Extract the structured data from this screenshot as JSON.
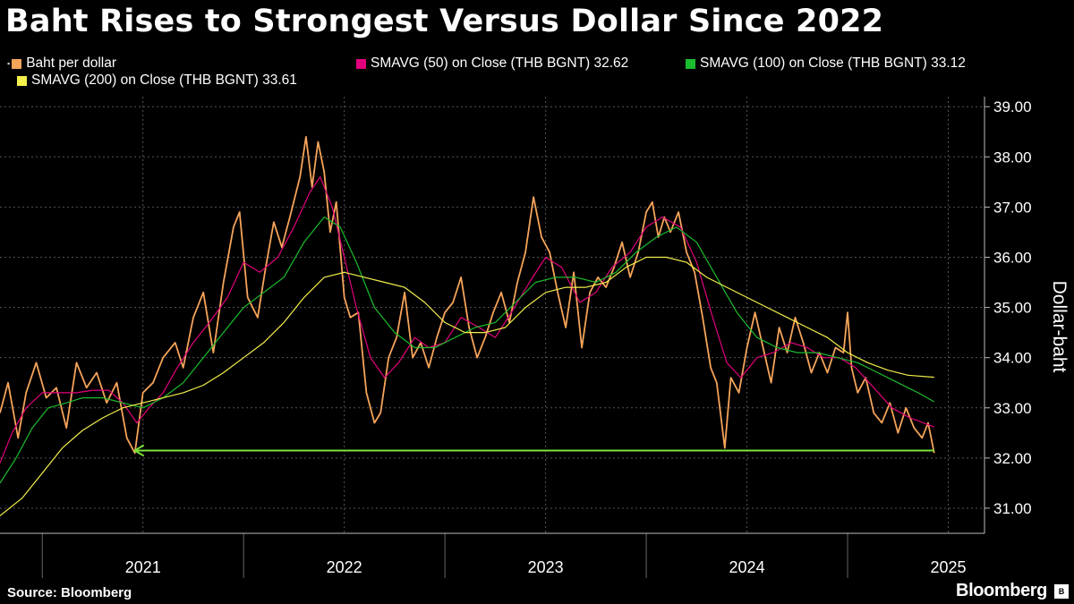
{
  "title": "Baht Rises to Strongest Versus Dollar Since 2022",
  "source": "Source: Bloomberg",
  "brand": "Bloomberg",
  "legend": [
    {
      "label": "Baht per dollar",
      "color": "#f6a45a",
      "marker": true
    },
    {
      "label": "SMAVG (50)  on Close (THB BGNT) 32.62",
      "color": "#e3007d"
    },
    {
      "label": "SMAVG (100)  on Close (THB BGNT) 33.12",
      "color": "#1bbc2e"
    },
    {
      "label": "SMAVG (200)  on Close (THB BGNT) 33.61",
      "color": "#f3ef4b"
    }
  ],
  "chart_data": {
    "type": "line",
    "ylabel": "Dollar-baht",
    "ylim": [
      30.5,
      39.2
    ],
    "yticks": [
      "31.00",
      "32.00",
      "33.00",
      "34.00",
      "35.00",
      "36.00",
      "37.00",
      "38.00",
      "39.00"
    ],
    "xlim": [
      2020.79,
      2025.68
    ],
    "year_labels": [
      {
        "label": "2021",
        "x": 2021.0
      },
      {
        "label": "2022",
        "x": 2022.0
      },
      {
        "label": "2023",
        "x": 2023.0
      },
      {
        "label": "2024",
        "x": 2024.0
      },
      {
        "label": "2025",
        "x": 2025.0
      }
    ],
    "series": [
      {
        "name": "Baht per dollar",
        "color": "#f6a45a",
        "values": [
          [
            2020.79,
            32.9
          ],
          [
            2020.83,
            33.5
          ],
          [
            2020.88,
            32.4
          ],
          [
            2020.92,
            33.3
          ],
          [
            2020.97,
            33.9
          ],
          [
            2021.02,
            33.2
          ],
          [
            2021.07,
            33.4
          ],
          [
            2021.12,
            32.6
          ],
          [
            2021.17,
            33.9
          ],
          [
            2021.22,
            33.4
          ],
          [
            2021.27,
            33.7
          ],
          [
            2021.32,
            33.1
          ],
          [
            2021.37,
            33.5
          ],
          [
            2021.42,
            32.4
          ],
          [
            2021.46,
            32.1
          ],
          [
            2021.5,
            33.3
          ],
          [
            2021.55,
            33.5
          ],
          [
            2021.6,
            34.0
          ],
          [
            2021.66,
            34.3
          ],
          [
            2021.7,
            33.8
          ],
          [
            2021.75,
            34.8
          ],
          [
            2021.8,
            35.3
          ],
          [
            2021.85,
            34.1
          ],
          [
            2021.9,
            35.5
          ],
          [
            2021.95,
            36.6
          ],
          [
            2021.98,
            36.9
          ],
          [
            2022.02,
            35.2
          ],
          [
            2022.07,
            34.8
          ],
          [
            2022.11,
            35.8
          ],
          [
            2022.15,
            36.7
          ],
          [
            2022.19,
            36.2
          ],
          [
            2022.23,
            36.8
          ],
          [
            2022.28,
            37.6
          ],
          [
            2022.31,
            38.4
          ],
          [
            2022.34,
            37.4
          ],
          [
            2022.37,
            38.3
          ],
          [
            2022.4,
            37.7
          ],
          [
            2022.43,
            36.5
          ],
          [
            2022.46,
            37.1
          ],
          [
            2022.5,
            35.2
          ],
          [
            2022.53,
            34.8
          ],
          [
            2022.57,
            34.9
          ],
          [
            2022.61,
            33.3
          ],
          [
            2022.65,
            32.7
          ],
          [
            2022.68,
            32.9
          ],
          [
            2022.72,
            34.0
          ],
          [
            2022.76,
            34.4
          ],
          [
            2022.8,
            35.3
          ],
          [
            2022.84,
            34.0
          ],
          [
            2022.88,
            34.3
          ],
          [
            2022.92,
            33.8
          ],
          [
            2022.96,
            34.4
          ],
          [
            2023.0,
            34.9
          ],
          [
            2023.04,
            35.1
          ],
          [
            2023.08,
            35.6
          ],
          [
            2023.12,
            34.6
          ],
          [
            2023.16,
            34.0
          ],
          [
            2023.2,
            34.4
          ],
          [
            2023.24,
            34.9
          ],
          [
            2023.28,
            35.3
          ],
          [
            2023.32,
            34.7
          ],
          [
            2023.36,
            35.5
          ],
          [
            2023.4,
            36.1
          ],
          [
            2023.44,
            37.2
          ],
          [
            2023.48,
            36.4
          ],
          [
            2023.52,
            36.1
          ],
          [
            2023.56,
            35.3
          ],
          [
            2023.6,
            34.6
          ],
          [
            2023.64,
            35.7
          ],
          [
            2023.68,
            34.2
          ],
          [
            2023.72,
            35.3
          ],
          [
            2023.76,
            35.6
          ],
          [
            2023.8,
            35.4
          ],
          [
            2023.84,
            35.8
          ],
          [
            2023.88,
            36.3
          ],
          [
            2023.92,
            35.6
          ],
          [
            2023.96,
            36.1
          ],
          [
            2024.0,
            36.9
          ],
          [
            2024.03,
            37.1
          ],
          [
            2024.06,
            36.4
          ],
          [
            2024.09,
            36.8
          ],
          [
            2024.12,
            36.5
          ],
          [
            2024.16,
            36.9
          ],
          [
            2024.2,
            36.1
          ],
          [
            2024.24,
            35.7
          ],
          [
            2024.28,
            34.8
          ],
          [
            2024.32,
            33.8
          ],
          [
            2024.35,
            33.5
          ],
          [
            2024.39,
            32.2
          ],
          [
            2024.42,
            33.6
          ],
          [
            2024.46,
            33.3
          ],
          [
            2024.5,
            34.2
          ],
          [
            2024.54,
            34.9
          ],
          [
            2024.58,
            34.2
          ],
          [
            2024.62,
            33.5
          ],
          [
            2024.66,
            34.6
          ],
          [
            2024.7,
            34.1
          ],
          [
            2024.74,
            34.8
          ],
          [
            2024.78,
            34.3
          ],
          [
            2024.82,
            33.7
          ],
          [
            2024.86,
            34.1
          ],
          [
            2024.9,
            33.7
          ],
          [
            2024.94,
            34.2
          ],
          [
            2024.98,
            34.1
          ],
          [
            2025.0,
            34.9
          ],
          [
            2025.02,
            33.8
          ],
          [
            2025.05,
            33.3
          ],
          [
            2025.09,
            33.6
          ],
          [
            2025.13,
            32.9
          ],
          [
            2025.17,
            32.7
          ],
          [
            2025.21,
            33.1
          ],
          [
            2025.25,
            32.5
          ],
          [
            2025.29,
            33.0
          ],
          [
            2025.33,
            32.6
          ],
          [
            2025.37,
            32.4
          ],
          [
            2025.4,
            32.7
          ],
          [
            2025.43,
            32.1
          ]
        ]
      },
      {
        "name": "SMAVG (50)  on Close (THB BGNT) 32.62",
        "color": "#e3007d",
        "values": [
          [
            2020.79,
            31.9
          ],
          [
            2020.85,
            32.5
          ],
          [
            2020.92,
            33.0
          ],
          [
            2021.0,
            33.3
          ],
          [
            2021.08,
            33.3
          ],
          [
            2021.17,
            33.3
          ],
          [
            2021.25,
            33.35
          ],
          [
            2021.33,
            33.35
          ],
          [
            2021.4,
            33.1
          ],
          [
            2021.47,
            32.7
          ],
          [
            2021.53,
            33.0
          ],
          [
            2021.6,
            33.3
          ],
          [
            2021.67,
            33.8
          ],
          [
            2021.75,
            34.3
          ],
          [
            2021.83,
            34.7
          ],
          [
            2021.92,
            35.2
          ],
          [
            2022.0,
            35.9
          ],
          [
            2022.08,
            35.7
          ],
          [
            2022.17,
            36.0
          ],
          [
            2022.25,
            36.6
          ],
          [
            2022.33,
            37.3
          ],
          [
            2022.38,
            37.6
          ],
          [
            2022.44,
            37.0
          ],
          [
            2022.5,
            36.0
          ],
          [
            2022.56,
            35.0
          ],
          [
            2022.63,
            34.0
          ],
          [
            2022.7,
            33.6
          ],
          [
            2022.77,
            33.9
          ],
          [
            2022.85,
            34.4
          ],
          [
            2022.92,
            34.2
          ],
          [
            2023.0,
            34.3
          ],
          [
            2023.08,
            34.8
          ],
          [
            2023.17,
            34.6
          ],
          [
            2023.25,
            34.4
          ],
          [
            2023.33,
            34.9
          ],
          [
            2023.42,
            35.5
          ],
          [
            2023.5,
            36.0
          ],
          [
            2023.58,
            35.8
          ],
          [
            2023.67,
            35.1
          ],
          [
            2023.75,
            35.3
          ],
          [
            2023.83,
            35.8
          ],
          [
            2023.92,
            36.1
          ],
          [
            2024.0,
            36.6
          ],
          [
            2024.08,
            36.8
          ],
          [
            2024.17,
            36.6
          ],
          [
            2024.25,
            35.9
          ],
          [
            2024.33,
            34.8
          ],
          [
            2024.4,
            33.9
          ],
          [
            2024.47,
            33.6
          ],
          [
            2024.55,
            34.0
          ],
          [
            2024.63,
            34.1
          ],
          [
            2024.72,
            34.3
          ],
          [
            2024.8,
            34.2
          ],
          [
            2024.88,
            34.0
          ],
          [
            2024.96,
            34.0
          ],
          [
            2025.04,
            33.8
          ],
          [
            2025.13,
            33.4
          ],
          [
            2025.22,
            33.0
          ],
          [
            2025.31,
            32.8
          ],
          [
            2025.43,
            32.62
          ]
        ]
      },
      {
        "name": "SMAVG (100)  on Close (THB BGNT) 33.12",
        "color": "#1bbc2e",
        "values": [
          [
            2020.79,
            31.5
          ],
          [
            2020.87,
            32.0
          ],
          [
            2020.95,
            32.6
          ],
          [
            2021.03,
            33.0
          ],
          [
            2021.12,
            33.1
          ],
          [
            2021.2,
            33.2
          ],
          [
            2021.3,
            33.2
          ],
          [
            2021.4,
            33.1
          ],
          [
            2021.5,
            33.0
          ],
          [
            2021.6,
            33.2
          ],
          [
            2021.7,
            33.5
          ],
          [
            2021.8,
            34.0
          ],
          [
            2021.9,
            34.5
          ],
          [
            2022.0,
            35.0
          ],
          [
            2022.1,
            35.3
          ],
          [
            2022.2,
            35.6
          ],
          [
            2022.3,
            36.3
          ],
          [
            2022.4,
            36.8
          ],
          [
            2022.48,
            36.6
          ],
          [
            2022.56,
            35.9
          ],
          [
            2022.65,
            35.0
          ],
          [
            2022.75,
            34.5
          ],
          [
            2022.85,
            34.2
          ],
          [
            2022.95,
            34.2
          ],
          [
            2023.05,
            34.4
          ],
          [
            2023.15,
            34.6
          ],
          [
            2023.25,
            34.7
          ],
          [
            2023.35,
            35.1
          ],
          [
            2023.45,
            35.5
          ],
          [
            2023.55,
            35.6
          ],
          [
            2023.65,
            35.6
          ],
          [
            2023.75,
            35.5
          ],
          [
            2023.85,
            35.7
          ],
          [
            2023.95,
            36.1
          ],
          [
            2024.05,
            36.4
          ],
          [
            2024.15,
            36.6
          ],
          [
            2024.25,
            36.3
          ],
          [
            2024.35,
            35.6
          ],
          [
            2024.45,
            34.9
          ],
          [
            2024.55,
            34.4
          ],
          [
            2024.65,
            34.2
          ],
          [
            2024.75,
            34.1
          ],
          [
            2024.85,
            34.1
          ],
          [
            2024.95,
            34.0
          ],
          [
            2025.05,
            33.9
          ],
          [
            2025.15,
            33.7
          ],
          [
            2025.25,
            33.5
          ],
          [
            2025.35,
            33.3
          ],
          [
            2025.43,
            33.12
          ]
        ]
      },
      {
        "name": "SMAVG (200)  on Close (THB BGNT) 33.61",
        "color": "#f3ef4b",
        "values": [
          [
            2020.79,
            30.85
          ],
          [
            2020.9,
            31.2
          ],
          [
            2021.0,
            31.7
          ],
          [
            2021.1,
            32.2
          ],
          [
            2021.2,
            32.55
          ],
          [
            2021.3,
            32.8
          ],
          [
            2021.4,
            33.0
          ],
          [
            2021.5,
            33.1
          ],
          [
            2021.6,
            33.2
          ],
          [
            2021.7,
            33.3
          ],
          [
            2021.8,
            33.45
          ],
          [
            2021.9,
            33.7
          ],
          [
            2022.0,
            34.0
          ],
          [
            2022.1,
            34.3
          ],
          [
            2022.2,
            34.7
          ],
          [
            2022.3,
            35.2
          ],
          [
            2022.4,
            35.6
          ],
          [
            2022.5,
            35.7
          ],
          [
            2022.6,
            35.6
          ],
          [
            2022.7,
            35.5
          ],
          [
            2022.8,
            35.4
          ],
          [
            2022.9,
            35.1
          ],
          [
            2023.0,
            34.7
          ],
          [
            2023.1,
            34.5
          ],
          [
            2023.2,
            34.5
          ],
          [
            2023.3,
            34.6
          ],
          [
            2023.4,
            35.0
          ],
          [
            2023.5,
            35.3
          ],
          [
            2023.6,
            35.4
          ],
          [
            2023.7,
            35.4
          ],
          [
            2023.8,
            35.5
          ],
          [
            2023.9,
            35.8
          ],
          [
            2024.0,
            36.0
          ],
          [
            2024.1,
            36.0
          ],
          [
            2024.2,
            35.9
          ],
          [
            2024.3,
            35.6
          ],
          [
            2024.4,
            35.4
          ],
          [
            2024.5,
            35.2
          ],
          [
            2024.6,
            35.0
          ],
          [
            2024.7,
            34.8
          ],
          [
            2024.8,
            34.6
          ],
          [
            2024.9,
            34.4
          ],
          [
            2025.0,
            34.1
          ],
          [
            2025.1,
            33.9
          ],
          [
            2025.2,
            33.75
          ],
          [
            2025.3,
            33.65
          ],
          [
            2025.43,
            33.61
          ]
        ]
      }
    ]
  }
}
